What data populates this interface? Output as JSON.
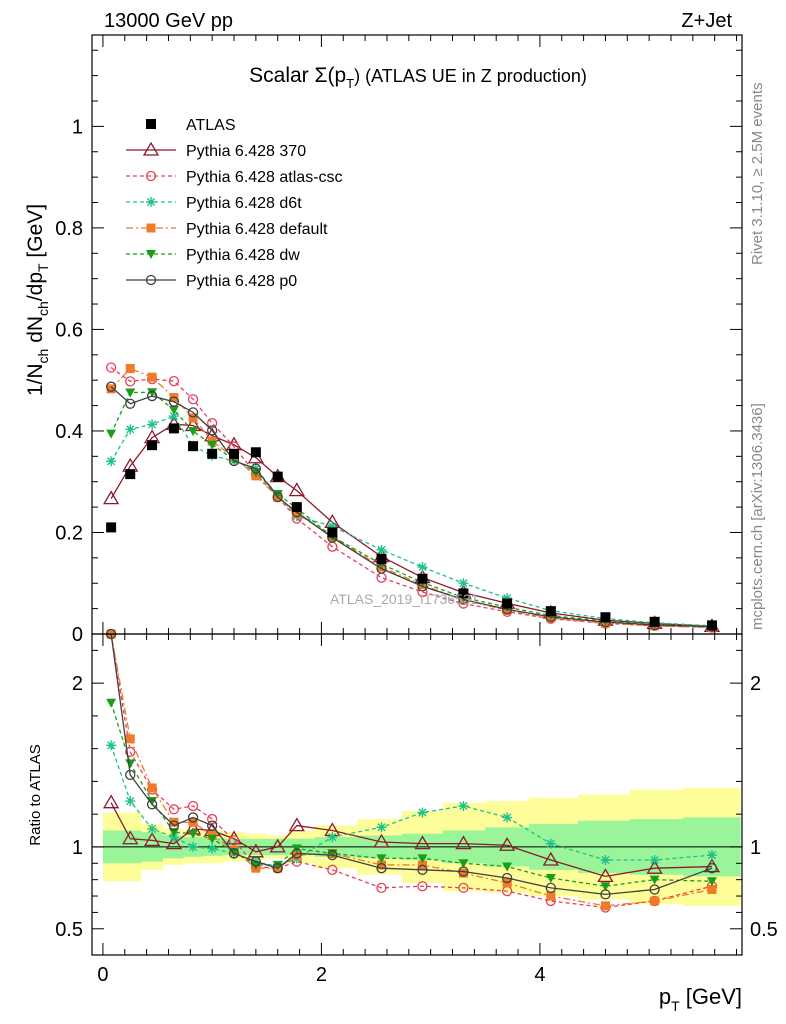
{
  "header": {
    "left": "13000 GeV pp",
    "right": "Z+Jet"
  },
  "side": {
    "rivet": "Rivet 3.1.10, ≥ 2.5M events",
    "url": "mcplots.cern.ch [arXiv:1306.3436]"
  },
  "chart_data": {
    "type": "line",
    "title": "Scalar Σ(p_T) (ATLAS UE in Z production)",
    "title_main": "Scalar Σ(p",
    "title_sub": "T",
    "title_tail": ") (ATLAS UE in Z production)",
    "watermark": "ATLAS_2019_I1736531",
    "xlabel": "p_T [GeV]",
    "xlabel_main": "p",
    "xlabel_sub": "T",
    "xlabel_tail": " [GeV]",
    "ylabel": "1/N_ch dN_ch/dp_T [GeV]",
    "ylabel_parts": [
      "1/N",
      "ch",
      " dN",
      "ch",
      "/dp",
      "T",
      " [GeV]"
    ],
    "ratio_ylabel": "Ratio to ATLAS",
    "xlim": [
      -0.1,
      5.85
    ],
    "ylim": [
      0,
      1.18
    ],
    "ratio_ylim": [
      0.34,
      2.3
    ],
    "x_ticks": [
      "0",
      "2",
      "4"
    ],
    "y_ticks": [
      "0",
      "0.2",
      "0.4",
      "0.6",
      "0.8",
      "1"
    ],
    "ratio_ticks": [
      "0.5",
      "1",
      "2"
    ],
    "x": [
      0.075,
      0.25,
      0.45,
      0.65,
      0.825,
      1.0,
      1.2,
      1.4,
      1.6,
      1.775,
      2.1,
      2.55,
      2.925,
      3.3,
      3.7,
      4.1,
      4.6,
      5.05,
      5.575
    ],
    "atlas": [
      0.21,
      0.315,
      0.372,
      0.405,
      0.37,
      0.355,
      0.355,
      0.358,
      0.31,
      0.25,
      0.2,
      0.148,
      0.109,
      0.08,
      0.06,
      0.045,
      0.033,
      0.024,
      0.017
    ],
    "band_inner": [
      0.1,
      0.1,
      0.09,
      0.07,
      0.06,
      0.055,
      0.05,
      0.05,
      0.05,
      0.05,
      0.06,
      0.07,
      0.08,
      0.1,
      0.12,
      0.14,
      0.16,
      0.17,
      0.18
    ],
    "band_outer": [
      0.21,
      0.21,
      0.14,
      0.11,
      0.1,
      0.1,
      0.09,
      0.08,
      0.07,
      0.1,
      0.13,
      0.17,
      0.22,
      0.27,
      0.28,
      0.3,
      0.32,
      0.35,
      0.36
    ],
    "series": [
      {
        "name": "Pythia 6.428 370",
        "color": "#8b1a2b",
        "dash": "",
        "marker": "tri-open",
        "ratio": [
          1.27,
          1.05,
          1.04,
          1.02,
          1.11,
          1.1,
          1.05,
          0.97,
          1.0,
          1.13,
          1.1,
          1.03,
          1.02,
          1.02,
          1.01,
          0.92,
          0.82,
          0.87,
          0.88
        ]
      },
      {
        "name": "Pythia 6.428 atlas-csc",
        "color": "#e8405a",
        "dash": "4,3",
        "marker": "circle-open",
        "ratio": [
          2.5,
          1.58,
          1.35,
          1.23,
          1.25,
          1.17,
          1.04,
          0.88,
          0.87,
          0.91,
          0.86,
          0.75,
          0.76,
          0.75,
          0.73,
          0.67,
          0.63,
          0.67,
          0.76
        ]
      },
      {
        "name": "Pythia 6.428 d6t",
        "color": "#1ec18a",
        "dash": "4,3",
        "marker": "star",
        "ratio": [
          1.62,
          1.28,
          1.11,
          1.06,
          1.0,
          0.99,
          0.96,
          0.91,
          0.88,
          0.93,
          1.06,
          1.12,
          1.21,
          1.25,
          1.18,
          1.02,
          0.92,
          0.92,
          0.95
        ]
      },
      {
        "name": "Pythia 6.428 default",
        "color": "#f07a28",
        "dash": "7,3,2,3",
        "marker": "square",
        "ratio": [
          2.3,
          1.66,
          1.36,
          1.15,
          1.15,
          1.07,
          0.98,
          0.87,
          0.87,
          0.95,
          0.96,
          0.89,
          0.89,
          0.84,
          0.78,
          0.7,
          0.64,
          0.67,
          0.74
        ]
      },
      {
        "name": "Pythia 6.428 dw",
        "color": "#1a9e1a",
        "dash": "4,3",
        "marker": "tri-down",
        "ratio": [
          1.88,
          1.51,
          1.28,
          1.09,
          1.08,
          1.05,
          0.97,
          0.89,
          0.89,
          0.99,
          0.96,
          0.93,
          0.93,
          0.9,
          0.88,
          0.81,
          0.76,
          0.8,
          0.79
        ]
      },
      {
        "name": "Pythia 6.428 p0",
        "color": "#404040",
        "dash": "",
        "marker": "circle-open",
        "ratio": [
          2.32,
          1.44,
          1.26,
          1.13,
          1.18,
          1.13,
          0.96,
          0.91,
          0.87,
          0.96,
          0.95,
          0.87,
          0.86,
          0.85,
          0.81,
          0.75,
          0.71,
          0.74,
          0.87
        ]
      }
    ],
    "legend": {
      "position": "top-left",
      "atlas_label": "ATLAS"
    }
  }
}
